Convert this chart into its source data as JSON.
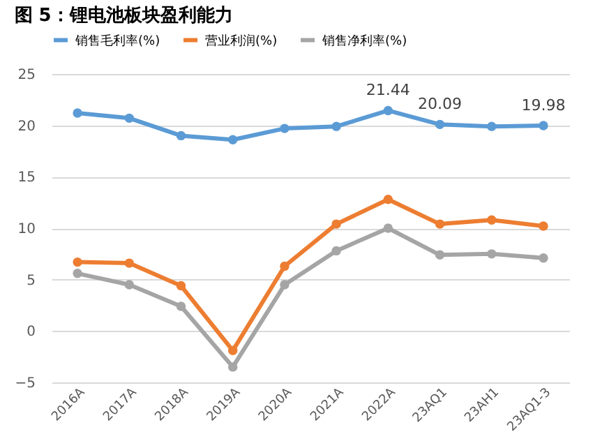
{
  "chart_data": {
    "type": "line",
    "title": "图 5：锂电池板块盈利能力",
    "categories": [
      "2016A",
      "2017A",
      "2018A",
      "2019A",
      "2020A",
      "2021A",
      "2022A",
      "23AQ1",
      "23AH1",
      "23AQ1-3"
    ],
    "series": [
      {
        "name": "销售毛利率(%)",
        "color": "#5b9bd5",
        "values": [
          21.2,
          20.7,
          19.0,
          18.6,
          19.7,
          19.9,
          21.44,
          20.09,
          19.9,
          19.98
        ],
        "value_labels": [
          null,
          null,
          null,
          null,
          null,
          null,
          "21.44",
          "20.09",
          null,
          "19.98"
        ]
      },
      {
        "name": "营业利润(%)",
        "color": "#ed7d31",
        "values": [
          6.7,
          6.6,
          4.4,
          -1.9,
          6.3,
          10.4,
          12.8,
          10.4,
          10.8,
          10.2
        ]
      },
      {
        "name": "销售净利率(%)",
        "color": "#a5a5a5",
        "values": [
          5.6,
          4.5,
          2.4,
          -3.5,
          4.5,
          7.8,
          10.0,
          7.4,
          7.5,
          7.1
        ]
      }
    ],
    "ylim": [
      -5,
      25
    ],
    "yticks": [
      -5,
      0,
      5,
      10,
      15,
      20,
      25
    ],
    "grid": "y",
    "legend": "top",
    "marker": "circle",
    "line_style": "solid"
  }
}
